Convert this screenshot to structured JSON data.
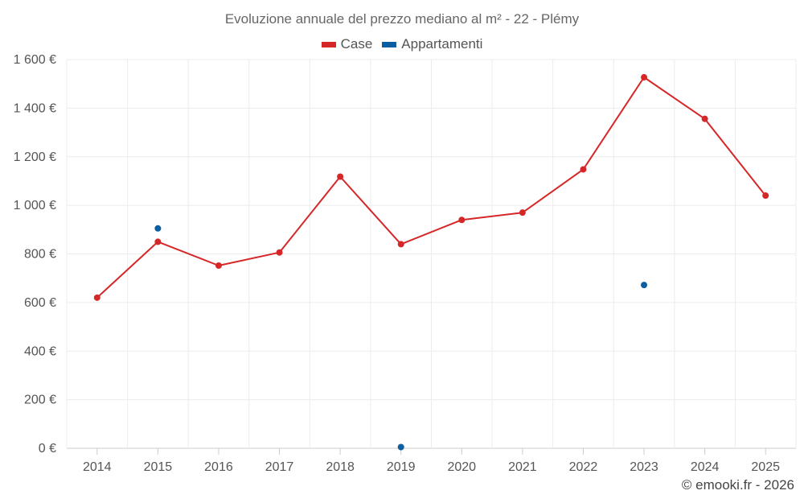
{
  "chart_data": {
    "type": "line",
    "title": "Evoluzione annuale del prezzo mediano al m² - 22 - Plémy",
    "xlabel": "",
    "ylabel": "",
    "categories": [
      "2014",
      "2015",
      "2016",
      "2017",
      "2018",
      "2019",
      "2020",
      "2021",
      "2022",
      "2023",
      "2024",
      "2025"
    ],
    "ylim": [
      0,
      1600
    ],
    "yticks": [
      0,
      200,
      400,
      600,
      800,
      1000,
      1200,
      1400,
      1600
    ],
    "ytick_labels": [
      "0 €",
      "200 €",
      "400 €",
      "600 €",
      "800 €",
      "1 000 €",
      "1 200 €",
      "1 400 €",
      "1 600 €"
    ],
    "grid": true,
    "legend_position": "top-center",
    "series": [
      {
        "name": "Case",
        "color": "#d62728",
        "style": "line",
        "values": [
          620,
          850,
          752,
          806,
          1118,
          840,
          940,
          970,
          1148,
          1527,
          1356,
          1040
        ]
      },
      {
        "name": "Appartamenti",
        "color": "#0b5fa0",
        "style": "points",
        "values": [
          null,
          905,
          null,
          null,
          null,
          5,
          null,
          null,
          null,
          672,
          null,
          null
        ]
      }
    ]
  },
  "credit": "© emooki.fr - 2026"
}
